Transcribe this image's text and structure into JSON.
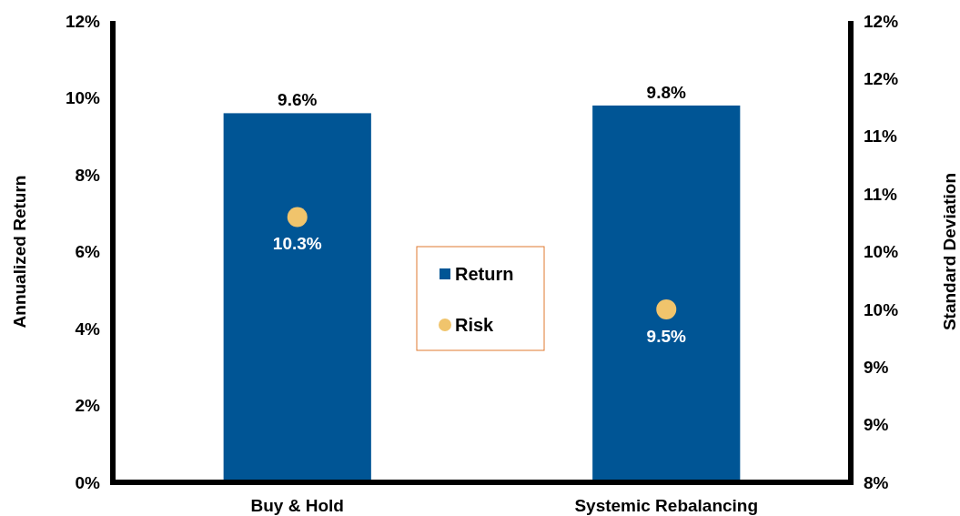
{
  "chart_data": {
    "type": "bar",
    "categories": [
      "Buy & Hold",
      "Systemic Rebalancing"
    ],
    "series": [
      {
        "name": "Return",
        "color": "#005595",
        "values": [
          9.6,
          9.8
        ],
        "value_labels": [
          "9.6%",
          "9.8%"
        ]
      },
      {
        "name": "Risk",
        "type": "scatter",
        "axis": "y2",
        "color": "#f0c46c",
        "x": [
          "Buy & Hold",
          "Systemic Rebalancing"
        ],
        "values": [
          10.3,
          9.5
        ],
        "value_labels": [
          "10.3%",
          "9.5%"
        ]
      }
    ],
    "ylabel": "Annualized Return",
    "y2label": "Standard Deviation",
    "ylim": [
      0,
      12
    ],
    "yticks": [
      {
        "value": 0,
        "label": "0%"
      },
      {
        "value": 2,
        "label": "2%"
      },
      {
        "value": 4,
        "label": "4%"
      },
      {
        "value": 6,
        "label": "6%"
      },
      {
        "value": 8,
        "label": "8%"
      },
      {
        "value": 10,
        "label": "10%"
      },
      {
        "value": 12,
        "label": "12%"
      }
    ],
    "y2lim": [
      8,
      12
    ],
    "y2ticks": [
      {
        "value": 8,
        "label": "8%"
      },
      {
        "value": 8.5,
        "label": "9%"
      },
      {
        "value": 9,
        "label": "9%"
      },
      {
        "value": 9.5,
        "label": "10%"
      },
      {
        "value": 10,
        "label": "10%"
      },
      {
        "value": 10.5,
        "label": "11%"
      },
      {
        "value": 11,
        "label": "11%"
      },
      {
        "value": 11.5,
        "label": "12%"
      },
      {
        "value": 12,
        "label": "12%"
      }
    ],
    "legend": "center",
    "marker": "circle",
    "grid": false
  }
}
